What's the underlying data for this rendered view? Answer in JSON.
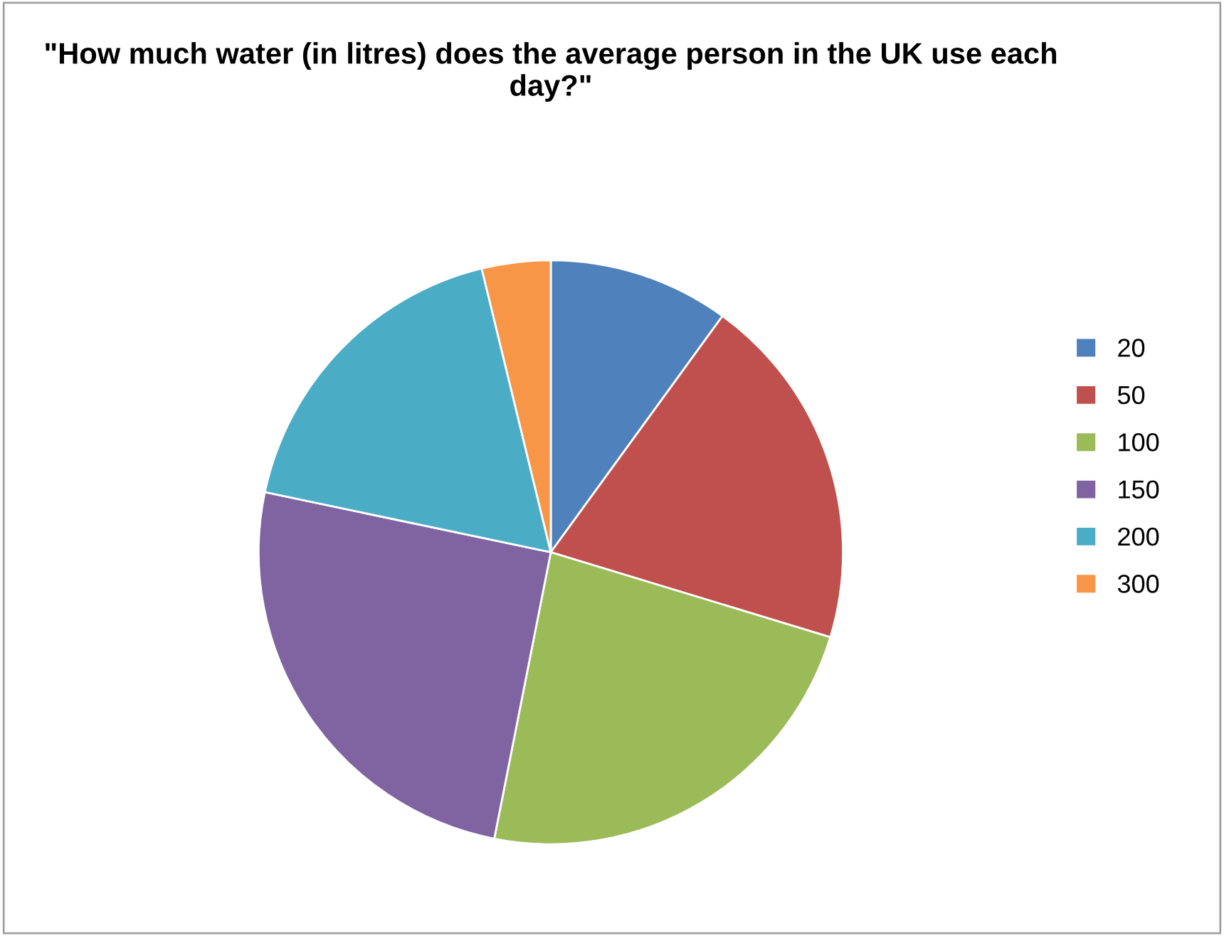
{
  "chart_data": {
    "type": "pie",
    "title": "\"How much water (in litres) does the average person in the UK use each day?\"",
    "categories": [
      "20",
      "50",
      "100",
      "150",
      "200",
      "300"
    ],
    "values": [
      10,
      19.7,
      23.4,
      25.2,
      17.9,
      3.8
    ],
    "colors": [
      "#4f81bd",
      "#c0504d",
      "#9bbb59",
      "#8064a2",
      "#4bacc6",
      "#f79646"
    ],
    "legend": "right"
  }
}
